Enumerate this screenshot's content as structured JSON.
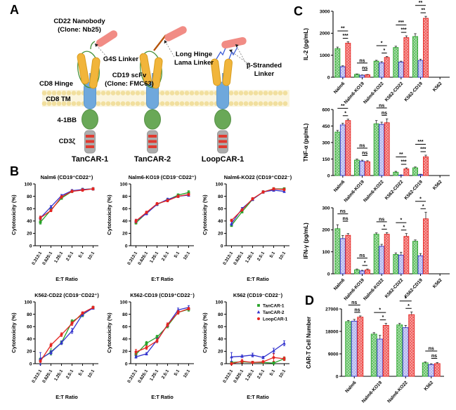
{
  "figure": {
    "panel_labels": {
      "a": "A",
      "b": "B",
      "c": "C",
      "d": "D"
    }
  },
  "colors": {
    "green": "#27A228",
    "blue": "#3434CE",
    "red": "#E52421",
    "green_fill": "#55BC57",
    "blue_fill": "#A7ABEC",
    "red_fill": "#EF514E",
    "membrane": "#F1DF9E",
    "tm_blue": "#6FA8DC",
    "costim_green": "#69A857",
    "cd3z_gray": "#ACACAC",
    "stripe_red": "#E03A30",
    "scfv_yellow": "#F1B53B",
    "nanobody_pink": "#F18C85",
    "loop_green": "#48933B",
    "lama_brown": "#B5530B",
    "beta_blue": "#3B5BD6",
    "gray_label": "#9A9A9A"
  },
  "panels": {
    "a": {
      "labels": {
        "cd22_nanobody_1": "CD22 Nanobody",
        "cd22_nanobody_2": "(Clone: Nb25)",
        "g4s_linker": "G4S Linker",
        "long_hinge_1": "Long Hinge",
        "long_hinge_2": "Lama Linker",
        "cd19_scfv_1": "CD19 scFv",
        "cd19_scfv_2": "(Clone: FMC63)",
        "beta_stranded_1": "β-Stranded",
        "beta_stranded_2": "Linker",
        "cd8_hinge": "CD8 Hinge",
        "cd8_tm": "CD8 TM",
        "four_1bb": "4-1BB",
        "cd3zeta": "CD3ζ"
      },
      "constructs": [
        {
          "name": "TanCAR-1"
        },
        {
          "name": "TanCAR-2"
        },
        {
          "name": "LoopCAR-1"
        }
      ]
    }
  },
  "chart_data": [
    {
      "name": "cytotoxicity-nalm6",
      "type": "line",
      "panel": "B",
      "title": "Nalm6 (CD19⁺CD22⁺)",
      "xlabel": "E:T Ratio",
      "ylabel": "Cytotoxicity (%)",
      "ylim": [
        0,
        100
      ],
      "yticks": [
        0,
        20,
        40,
        60,
        80,
        100
      ],
      "legend": false,
      "categories": [
        "0.313:1",
        "0.625:1",
        "1.25:1",
        "2.5:1",
        "5:1",
        "10:1"
      ],
      "series": [
        {
          "name": "TanCAR-1",
          "color": "green",
          "marker": "square",
          "values": [
            38,
            58,
            77,
            88,
            91,
            92
          ],
          "err": [
            3,
            2,
            2,
            2,
            2,
            2
          ]
        },
        {
          "name": "TanCAR-2",
          "color": "blue",
          "marker": "triangle",
          "values": [
            45,
            63,
            81,
            89,
            91,
            92
          ],
          "err": [
            2,
            2,
            2,
            2,
            2,
            2
          ]
        },
        {
          "name": "LoopCAR-1",
          "color": "red",
          "marker": "circle",
          "values": [
            45,
            57,
            79,
            88,
            90,
            92
          ],
          "err": [
            3,
            2,
            2,
            2,
            2,
            2
          ]
        }
      ]
    },
    {
      "name": "cytotoxicity-nalm6-ko19",
      "type": "line",
      "panel": "B",
      "title": "Nalm6-KO19 (CD19⁻CD22⁺)",
      "xlabel": "E:T Ratio",
      "ylabel": "Cytotoxicity (%)",
      "ylim": [
        0,
        100
      ],
      "yticks": [
        0,
        20,
        40,
        60,
        80,
        100
      ],
      "legend": false,
      "categories": [
        "0.313:1",
        "0.625:1",
        "1.25:1",
        "2.5:1",
        "5:1",
        "10:1"
      ],
      "series": [
        {
          "name": "TanCAR-1",
          "color": "green",
          "marker": "square",
          "values": [
            37,
            53,
            67,
            74,
            82,
            86
          ],
          "err": [
            2,
            2,
            2,
            2,
            2,
            3
          ]
        },
        {
          "name": "TanCAR-2",
          "color": "blue",
          "marker": "triangle",
          "values": [
            40,
            52,
            67,
            75,
            80,
            82
          ],
          "err": [
            2,
            2,
            2,
            2,
            2,
            2
          ]
        },
        {
          "name": "LoopCAR-1",
          "color": "red",
          "marker": "circle",
          "values": [
            40,
            54,
            68,
            73,
            80,
            83
          ],
          "err": [
            3,
            2,
            2,
            2,
            2,
            2
          ]
        }
      ]
    },
    {
      "name": "cytotoxicity-nalm6-ko22",
      "type": "line",
      "panel": "B",
      "title": "Nalm6-KO22 (CD19⁺CD22⁻)",
      "xlabel": "E:T Ratio",
      "ylabel": "Cytotoxicity (%)",
      "ylim": [
        0,
        100
      ],
      "yticks": [
        0,
        20,
        40,
        60,
        80,
        100
      ],
      "legend": false,
      "categories": [
        "0.313:1",
        "0.625:1",
        "1.25:1",
        "2.5:1",
        "5:1",
        "10:1"
      ],
      "series": [
        {
          "name": "TanCAR-1",
          "color": "green",
          "marker": "square",
          "values": [
            33,
            55,
            75,
            87,
            92,
            92
          ],
          "err": [
            2,
            2,
            2,
            2,
            2,
            2
          ]
        },
        {
          "name": "TanCAR-2",
          "color": "blue",
          "marker": "triangle",
          "values": [
            36,
            60,
            75,
            87,
            90,
            88
          ],
          "err": [
            3,
            2,
            2,
            2,
            2,
            2
          ]
        },
        {
          "name": "LoopCAR-1",
          "color": "red",
          "marker": "circle",
          "values": [
            41,
            58,
            76,
            87,
            92,
            91
          ],
          "err": [
            2,
            2,
            2,
            2,
            2,
            2
          ]
        }
      ]
    },
    {
      "name": "cytotoxicity-k562-cd22",
      "type": "line",
      "panel": "B",
      "title": "K562-CD22 (CD19⁻CD22⁺)",
      "xlabel": "E:T Ratio",
      "ylabel": "Cytotoxicity (%)",
      "ylim": [
        0,
        100
      ],
      "yticks": [
        0,
        20,
        40,
        60,
        80,
        100
      ],
      "legend": false,
      "categories": [
        "0.313:1",
        "0.625:1",
        "1.25:1",
        "2.5:1",
        "5:1",
        "10:1"
      ],
      "series": [
        {
          "name": "TanCAR-1",
          "color": "green",
          "marker": "square",
          "values": [
            7,
            19,
            34,
            68,
            79,
            91
          ],
          "err": [
            2,
            5,
            3,
            3,
            3,
            2
          ]
        },
        {
          "name": "TanCAR-2",
          "color": "blue",
          "marker": "triangle",
          "values": [
            8,
            18,
            34,
            53,
            80,
            90
          ],
          "err": [
            10,
            3,
            3,
            4,
            3,
            2
          ]
        },
        {
          "name": "LoopCAR-1",
          "color": "red",
          "marker": "circle",
          "values": [
            4,
            30,
            47,
            65,
            82,
            91
          ],
          "err": [
            2,
            3,
            3,
            3,
            2,
            2
          ]
        }
      ]
    },
    {
      "name": "cytotoxicity-k562-cd19",
      "type": "line",
      "panel": "B",
      "title": "K562-CD19 (CD19⁺CD22⁻)",
      "xlabel": "E:T Ratio",
      "ylabel": "Cytotoxicity (%)",
      "ylim": [
        0,
        100
      ],
      "yticks": [
        0,
        20,
        40,
        60,
        80,
        100
      ],
      "legend": false,
      "categories": [
        "0.313:1",
        "0.625:1",
        "1.25:1",
        "2.5:1",
        "5:1",
        "10:1"
      ],
      "series": [
        {
          "name": "TanCAR-1",
          "color": "green",
          "marker": "square",
          "values": [
            15,
            33,
            43,
            61,
            83,
            88
          ],
          "err": [
            3,
            3,
            3,
            3,
            2,
            3
          ]
        },
        {
          "name": "TanCAR-2",
          "color": "blue",
          "marker": "triangle",
          "values": [
            11,
            16,
            38,
            63,
            87,
            91
          ],
          "err": [
            2,
            2,
            3,
            3,
            3,
            3
          ]
        },
        {
          "name": "LoopCAR-1",
          "color": "red",
          "marker": "circle",
          "values": [
            19,
            26,
            37,
            63,
            83,
            89
          ],
          "err": [
            4,
            3,
            3,
            3,
            3,
            2
          ]
        }
      ]
    },
    {
      "name": "cytotoxicity-k562",
      "type": "line",
      "panel": "B",
      "title": "K562 (CD19⁻CD22⁻)",
      "xlabel": "E:T Ratio",
      "ylabel": "Cytotoxicity (%)",
      "ylim": [
        0,
        100
      ],
      "yticks": [
        0,
        20,
        40,
        60,
        80,
        100
      ],
      "legend": true,
      "categories": [
        "0.313:1",
        "0.625:1",
        "1.25:1",
        "2.5:1",
        "5:1",
        "10:1"
      ],
      "series": [
        {
          "name": "TanCAR-1",
          "color": "green",
          "marker": "square",
          "values": [
            2,
            3,
            2,
            2,
            1,
            8
          ],
          "err": [
            2,
            2,
            2,
            2,
            2,
            3
          ]
        },
        {
          "name": "TanCAR-2",
          "color": "blue",
          "marker": "triangle",
          "values": [
            11,
            12,
            14,
            10,
            21,
            33
          ],
          "err": [
            7,
            2,
            3,
            2,
            4,
            4
          ]
        },
        {
          "name": "LoopCAR-1",
          "color": "red",
          "marker": "circle",
          "values": [
            0,
            4,
            2,
            3,
            10,
            8
          ],
          "err": [
            2,
            3,
            2,
            2,
            6,
            3
          ]
        }
      ]
    },
    {
      "name": "il2",
      "type": "bar",
      "panel": "C",
      "title": "",
      "xlabel": "",
      "ylabel": "IL-2 (pg/mL)",
      "ylim": [
        0,
        3000
      ],
      "yticks": [
        0,
        1000,
        2000,
        3000
      ],
      "categories": [
        "Nalm6",
        "Nalm6-KO19",
        "Nalm6-KO22",
        "K562-CD22",
        "K562-CD19",
        "K562"
      ],
      "series": [
        {
          "name": "TanCAR-1",
          "color": "green",
          "values": [
            1300,
            130,
            730,
            1350,
            1850,
            0
          ],
          "err": [
            70,
            20,
            40,
            60,
            130,
            0
          ]
        },
        {
          "name": "TanCAR-2",
          "color": "blue",
          "values": [
            480,
            90,
            650,
            690,
            760,
            0
          ],
          "err": [
            40,
            15,
            60,
            40,
            60,
            0
          ]
        },
        {
          "name": "LoopCAR-1",
          "color": "red",
          "values": [
            1550,
            110,
            900,
            1800,
            2680,
            0
          ],
          "err": [
            60,
            15,
            40,
            80,
            90,
            0
          ]
        }
      ],
      "significance": [
        {
          "top": "**",
          "bottom": "***"
        },
        {
          "top": "ns",
          "bottom": "ns"
        },
        {
          "top": "*",
          "bottom": "*"
        },
        {
          "top": "***",
          "bottom": "***"
        },
        {
          "top": "**",
          "bottom": "**"
        },
        null
      ]
    },
    {
      "name": "tnf-alpha",
      "type": "bar",
      "panel": "C",
      "title": "",
      "xlabel": "",
      "ylabel": "TNF-α (pg/mL)",
      "ylim": [
        0,
        600
      ],
      "yticks": [
        0,
        150,
        300,
        450,
        600
      ],
      "categories": [
        "Nalm6",
        "Nalm6-KO19",
        "Nalm6-KO22",
        "K562-CD22",
        "K562-CD19",
        "K562"
      ],
      "series": [
        {
          "name": "TanCAR-1",
          "color": "green",
          "values": [
            395,
            140,
            470,
            30,
            70,
            0
          ],
          "err": [
            15,
            10,
            30,
            8,
            8,
            0
          ]
        },
        {
          "name": "TanCAR-2",
          "color": "blue",
          "values": [
            460,
            130,
            465,
            3,
            8,
            0
          ],
          "err": [
            15,
            10,
            20,
            3,
            4,
            0
          ]
        },
        {
          "name": "LoopCAR-1",
          "color": "red",
          "values": [
            500,
            125,
            480,
            60,
            170,
            0
          ],
          "err": [
            12,
            10,
            35,
            10,
            15,
            0
          ]
        }
      ],
      "significance": [
        {
          "top": "**",
          "bottom": "*"
        },
        {
          "top": "ns",
          "bottom": "ns"
        },
        {
          "top": "ns",
          "bottom": "ns"
        },
        {
          "top": "**",
          "bottom": "***"
        },
        {
          "top": "***",
          "bottom": "***"
        },
        null
      ]
    },
    {
      "name": "ifn-gamma",
      "type": "bar",
      "panel": "C",
      "title": "",
      "xlabel": "",
      "ylabel": "IFN-γ (pg/mL)",
      "ylim": [
        0,
        300
      ],
      "yticks": [
        0,
        100,
        200,
        300
      ],
      "categories": [
        "Nalm6",
        "Nalm6-KO19",
        "Nalm6-KO22",
        "K562-CD22",
        "K562-CD19",
        "K562"
      ],
      "series": [
        {
          "name": "TanCAR-1",
          "color": "green",
          "values": [
            205,
            18,
            180,
            88,
            148,
            0
          ],
          "err": [
            18,
            4,
            6,
            7,
            6,
            0
          ]
        },
        {
          "name": "TanCAR-2",
          "color": "blue",
          "values": [
            160,
            13,
            125,
            85,
            82,
            0
          ],
          "err": [
            14,
            3,
            9,
            13,
            10,
            0
          ]
        },
        {
          "name": "LoopCAR-1",
          "color": "red",
          "values": [
            175,
            18,
            180,
            170,
            250,
            0
          ],
          "err": [
            8,
            4,
            7,
            13,
            30,
            0
          ]
        }
      ],
      "significance": [
        {
          "top": "ns",
          "bottom": "ns"
        },
        {
          "top": "ns",
          "bottom": "*"
        },
        {
          "top": "ns",
          "bottom": "*"
        },
        {
          "top": "*",
          "bottom": "*"
        },
        {
          "top": "*",
          "bottom": "*"
        },
        null
      ]
    },
    {
      "name": "cart-cell-number",
      "type": "bar",
      "panel": "D",
      "title": "",
      "xlabel": "",
      "ylabel": "CAR-T Cell Number",
      "ylim": [
        0,
        27000
      ],
      "yticks": [
        0,
        9000,
        18000,
        27000
      ],
      "categories": [
        "Nalm6",
        "Nalm6-KO19",
        "Nalm6-KO22",
        "K562"
      ],
      "series": [
        {
          "name": "TanCAR-1",
          "color": "green",
          "values": [
            21900,
            16900,
            20600,
            5400
          ],
          "err": [
            500,
            600,
            600,
            350
          ]
        },
        {
          "name": "TanCAR-2",
          "color": "blue",
          "values": [
            22100,
            14900,
            19500,
            4700
          ],
          "err": [
            700,
            1500,
            900,
            350
          ]
        },
        {
          "name": "LoopCAR-1",
          "color": "red",
          "values": [
            23700,
            20400,
            24700,
            5100
          ],
          "err": [
            500,
            800,
            1100,
            400
          ]
        }
      ],
      "significance": [
        {
          "top": "ns",
          "bottom": "ns"
        },
        {
          "top": "*",
          "bottom": "*"
        },
        {
          "top": "*",
          "bottom": "*"
        },
        {
          "top": "ns",
          "bottom": "ns"
        }
      ]
    }
  ]
}
